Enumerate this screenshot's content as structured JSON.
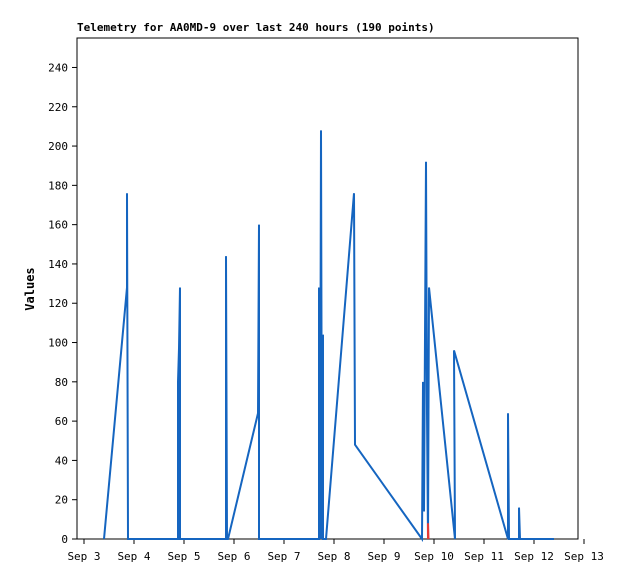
{
  "chart_data": {
    "type": "line",
    "title": "Telemetry for AA0MD-9 over last 240 hours (190 points)",
    "y_label": "Values",
    "xlim": [
      2.86,
      12.88
    ],
    "ylim": [
      0,
      255
    ],
    "xticks": [
      {
        "value": 3,
        "label": "Sep 3"
      },
      {
        "value": 4,
        "label": "Sep 4"
      },
      {
        "value": 5,
        "label": "Sep 5"
      },
      {
        "value": 6,
        "label": "Sep 6"
      },
      {
        "value": 7,
        "label": "Sep 7"
      },
      {
        "value": 8,
        "label": "Sep 8"
      },
      {
        "value": 9,
        "label": "Sep 9"
      },
      {
        "value": 10,
        "label": "Sep 10"
      },
      {
        "value": 11,
        "label": "Sep 11"
      },
      {
        "value": 12,
        "label": "Sep 12"
      },
      {
        "value": 13,
        "label": "Sep 13"
      }
    ],
    "yticks": [
      0,
      20,
      40,
      60,
      80,
      100,
      120,
      140,
      160,
      180,
      200,
      220,
      240
    ],
    "series": [
      {
        "name": "blue",
        "color": "#1565c0",
        "x": [
          3.4,
          3.86,
          3.86,
          3.88,
          4.88,
          4.88,
          4.9,
          4.92,
          4.92,
          5.84,
          5.84,
          5.86,
          5.88,
          6.48,
          6.5,
          6.5,
          6.5,
          7.7,
          7.7,
          7.72,
          7.74,
          7.76,
          7.78,
          7.78,
          7.84,
          8.4,
          8.42,
          9.76,
          9.78,
          9.8,
          9.84,
          9.86,
          9.88,
          9.9,
          10.42,
          10.4,
          11.48,
          11.48,
          11.5,
          11.7,
          11.7,
          11.72,
          12.4
        ],
        "values": [
          0,
          128,
          176,
          0,
          0,
          80,
          97,
          128,
          0,
          0,
          144,
          0,
          0,
          64,
          160,
          32,
          0,
          0,
          128,
          0,
          208,
          0,
          104,
          0,
          0,
          176,
          48,
          0,
          80,
          14,
          192,
          64,
          0,
          128,
          0,
          96,
          0,
          64,
          0,
          0,
          16,
          0,
          0
        ]
      },
      {
        "name": "red",
        "color": "#e53935",
        "x": [
          9.88,
          9.88,
          9.89
        ],
        "values": [
          0,
          8,
          0
        ]
      }
    ]
  }
}
